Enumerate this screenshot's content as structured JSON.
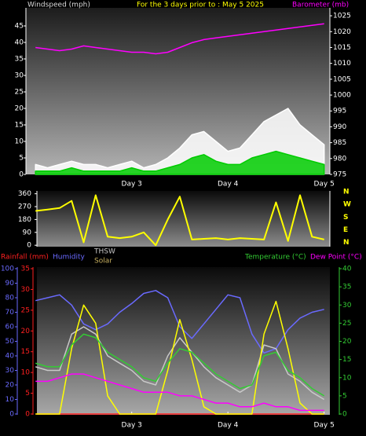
{
  "chart_data": [
    {
      "type": "line",
      "title": "For the 3 days prior to : May 5 2025",
      "ylabel": "Windspeed (mph)",
      "y2label": "Barometer (mb)",
      "x": [
        2,
        2.125,
        2.25,
        2.375,
        2.5,
        2.625,
        2.75,
        2.875,
        3,
        3.125,
        3.25,
        3.375,
        3.5,
        3.625,
        3.75,
        3.875,
        4,
        4.125,
        4.25,
        4.375,
        4.5,
        4.625,
        4.75,
        4.875,
        5
      ],
      "xlim": [
        1.9,
        5.06
      ],
      "xticks": [
        {
          "value": 3,
          "label": "Day 3"
        },
        {
          "value": 4,
          "label": "Day 4"
        },
        {
          "value": 5,
          "label": "Day 5"
        }
      ],
      "ylim": [
        0,
        50
      ],
      "yticks": [
        0,
        5,
        10,
        15,
        20,
        25,
        30,
        35,
        40,
        45
      ],
      "y2lim": [
        975,
        1027
      ],
      "y2ticks": [
        975,
        980,
        985,
        990,
        995,
        1000,
        1005,
        1010,
        1015,
        1020,
        1025
      ],
      "axis_colors": {
        "y": "#ffffff",
        "y2": "#ffffff"
      },
      "label_colors": {
        "title": "#ffff00",
        "ylabel": "#dddddd",
        "y2label": "#ff00ff"
      },
      "series": [
        {
          "color": "#ffffff",
          "style": "area",
          "axis": "y",
          "values": [
            3,
            2,
            3,
            4,
            3,
            3,
            2,
            3,
            4,
            2,
            3,
            5,
            8,
            12,
            13,
            10,
            7,
            8,
            12,
            16,
            18,
            20,
            15,
            12,
            9
          ]
        },
        {
          "color": "#00cc00",
          "style": "area",
          "axis": "y",
          "values": [
            1,
            1,
            1,
            2,
            1,
            1,
            1,
            1,
            2,
            1,
            1,
            2,
            3,
            5,
            6,
            4,
            3,
            3,
            5,
            6,
            7,
            6,
            5,
            4,
            3
          ]
        },
        {
          "color": "#ff00ff",
          "style": "line",
          "axis": "y2",
          "values": [
            1015,
            1014.5,
            1014,
            1014.5,
            1015.5,
            1015,
            1014.5,
            1014,
            1013.5,
            1013.5,
            1013,
            1013.5,
            1015,
            1016.5,
            1017.5,
            1018,
            1018.5,
            1019,
            1019.5,
            1020,
            1020.5,
            1021,
            1021.5,
            1022,
            1022.5
          ]
        }
      ]
    },
    {
      "type": "line",
      "x": [
        2,
        2.125,
        2.25,
        2.375,
        2.5,
        2.625,
        2.75,
        2.875,
        3,
        3.125,
        3.25,
        3.375,
        3.5,
        3.625,
        3.75,
        3.875,
        4,
        4.125,
        4.25,
        4.375,
        4.5,
        4.625,
        4.75,
        4.875,
        5
      ],
      "xlim": [
        1.9,
        5.06
      ],
      "ylim": [
        -10,
        380
      ],
      "yticks": [
        0,
        90,
        180,
        270,
        360
      ],
      "y2lim": [
        -30,
        365
      ],
      "y2ticks": [
        {
          "value": 360,
          "label": "N"
        },
        {
          "value": 270,
          "label": "W"
        },
        {
          "value": 180,
          "label": "S"
        },
        {
          "value": 90,
          "label": "E"
        },
        {
          "value": 0,
          "label": "N"
        }
      ],
      "axis_colors": {
        "y": "#ffffff",
        "y2": "#ffff00"
      },
      "series": [
        {
          "color": "#ffff00",
          "style": "line",
          "axis": "y",
          "values": [
            240,
            250,
            260,
            310,
            20,
            350,
            60,
            50,
            60,
            90,
            0,
            180,
            340,
            40,
            45,
            50,
            40,
            50,
            45,
            40,
            300,
            30,
            350,
            60,
            40
          ]
        }
      ]
    },
    {
      "type": "line",
      "x": [
        2,
        2.125,
        2.25,
        2.375,
        2.5,
        2.625,
        2.75,
        2.875,
        3,
        3.125,
        3.25,
        3.375,
        3.5,
        3.625,
        3.75,
        3.875,
        4,
        4.125,
        4.25,
        4.375,
        4.5,
        4.625,
        4.75,
        4.875,
        5
      ],
      "xlim": [
        1.9,
        5.06
      ],
      "xticks": [
        {
          "value": 3,
          "label": "Day 3"
        },
        {
          "value": 4,
          "label": "Day 4"
        },
        {
          "value": 5,
          "label": "Day 5"
        }
      ],
      "ylim": [
        0,
        100
      ],
      "yticks": [
        0,
        10,
        20,
        30,
        40,
        50,
        60,
        70,
        80,
        90,
        100
      ],
      "y2lim": [
        0,
        40
      ],
      "y2ticks": [
        0,
        5,
        10,
        15,
        20,
        25,
        30,
        35,
        40
      ],
      "y3lim": [
        0,
        35
      ],
      "y3ticks": [
        0,
        5,
        10,
        15,
        20,
        25,
        30,
        35
      ],
      "axis_colors": {
        "y": "#6a6aff",
        "y2": "#33cc33",
        "y3": "#ff2020"
      },
      "series": [
        {
          "name": "Rainfall (mm)",
          "color": "#ff2020",
          "style": "line",
          "axis": "y3",
          "values": [
            0,
            0,
            0,
            0,
            0,
            0,
            0,
            0,
            0,
            0,
            0,
            0,
            0,
            0,
            0,
            0,
            0,
            0,
            0,
            0,
            0,
            0,
            0,
            0,
            0
          ]
        },
        {
          "name": "Humidity",
          "color": "#6a6aff",
          "style": "line",
          "axis": "y",
          "values": [
            78,
            80,
            82,
            75,
            62,
            58,
            62,
            70,
            76,
            83,
            85,
            80,
            60,
            52,
            62,
            72,
            82,
            80,
            55,
            42,
            45,
            58,
            66,
            70,
            72
          ]
        },
        {
          "name": "THSW",
          "color": "#c8c8c8",
          "style": "line",
          "axis": "y2",
          "values": [
            13,
            12,
            12,
            22,
            24,
            22,
            16,
            14,
            12,
            9,
            8,
            16,
            21,
            17,
            13,
            10,
            8,
            6,
            8,
            19,
            18,
            11,
            9,
            6,
            4
          ]
        },
        {
          "name": "Solar",
          "color": "#ffff00",
          "style": "line",
          "axis": "y2",
          "values": [
            0,
            0,
            0,
            18,
            30,
            25,
            5,
            0,
            0,
            0,
            0,
            12,
            26,
            15,
            2,
            0,
            0,
            0,
            0,
            22,
            31,
            18,
            3,
            0,
            0
          ]
        },
        {
          "name": "Temperature (°C)",
          "color": "#33cc33",
          "style": "line",
          "axis": "y2",
          "values": [
            14,
            13,
            13,
            19,
            22,
            21,
            17,
            15,
            13,
            10,
            9,
            14,
            18,
            17,
            14,
            11,
            9,
            7,
            8,
            16,
            17,
            12,
            10,
            7,
            5
          ]
        },
        {
          "name": "Dew Point (°C)",
          "color": "#ff00ff",
          "style": "line",
          "axis": "y2",
          "values": [
            9,
            9,
            10,
            11,
            11,
            10,
            9,
            8,
            7,
            6,
            6,
            6,
            5,
            5,
            4,
            3,
            3,
            2,
            2,
            3,
            2,
            2,
            1,
            1,
            1
          ]
        }
      ]
    }
  ]
}
